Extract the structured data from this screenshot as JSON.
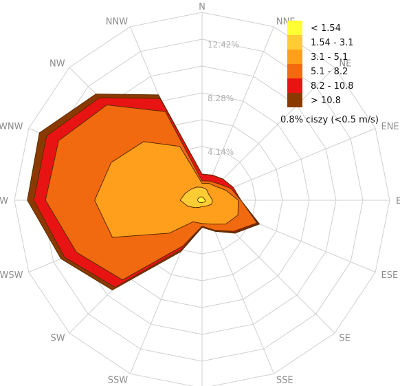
{
  "chart_data": {
    "type": "windrose",
    "directions": [
      "N",
      "NNE",
      "NE",
      "ENE",
      "E",
      "ESE",
      "SE",
      "SSE",
      "S",
      "SSW",
      "SW",
      "WSW",
      "W",
      "WNW",
      "NW",
      "NNW"
    ],
    "ring_labels": [
      "4.14%",
      "8.28%",
      "12.42%"
    ],
    "rings_max_percent": 14.5,
    "calm_note": "0.8% ciszy (<0.5 m/s)",
    "bins": [
      {
        "name": "< 1.54",
        "color": "#ffff33"
      },
      {
        "name": "1.54 - 3.1",
        "color": "#ffcc33"
      },
      {
        "name": "3.1 - 5.1",
        "color": "#ff9f1c"
      },
      {
        "name": "5.1 - 8.2",
        "color": "#f26a0f"
      },
      {
        "name": "8.2 - 10.8",
        "color": "#e81414"
      },
      {
        "name": "> 10.8",
        "color": "#8a3a00"
      }
    ],
    "cumulative_percent": [
      {
        "bin": "> 10.8",
        "values": [
          2.0,
          2.1,
          2.3,
          2.6,
          3.0,
          4.8,
          3.6,
          2.6,
          2.1,
          4.3,
          9.8,
          11.8,
          13.5,
          13.6,
          11.6,
          8.8
        ]
      },
      {
        "bin": "8.2 - 10.8",
        "values": [
          2.0,
          2.1,
          2.3,
          2.6,
          3.0,
          4.7,
          3.5,
          2.5,
          2.0,
          4.1,
          9.5,
          11.5,
          13.0,
          13.0,
          11.2,
          8.5
        ]
      },
      {
        "bin": "5.1 - 8.2",
        "values": [
          1.5,
          1.6,
          1.8,
          2.4,
          3.0,
          4.6,
          3.4,
          2.5,
          2.0,
          3.8,
          8.7,
          10.5,
          12.1,
          12.0,
          10.4,
          7.4
        ]
      },
      {
        "bin": "3.1 - 5.1",
        "values": [
          1.3,
          1.4,
          1.5,
          2.0,
          2.8,
          3.0,
          2.6,
          2.0,
          1.8,
          1.8,
          3.6,
          7.5,
          8.3,
          7.6,
          6.4,
          4.5
        ]
      },
      {
        "bin": "1.54 - 3.1",
        "values": [
          1.0,
          0.9,
          0.7,
          0.7,
          0.8,
          0.8,
          0.6,
          0.5,
          0.5,
          0.6,
          0.8,
          1.2,
          1.7,
          1.4,
          1.2,
          1.1
        ]
      },
      {
        "bin": "< 1.54",
        "values": [
          0.25,
          0.22,
          0.2,
          0.2,
          0.25,
          0.25,
          0.2,
          0.18,
          0.2,
          0.2,
          0.25,
          0.3,
          0.35,
          0.33,
          0.3,
          0.28
        ]
      }
    ]
  }
}
